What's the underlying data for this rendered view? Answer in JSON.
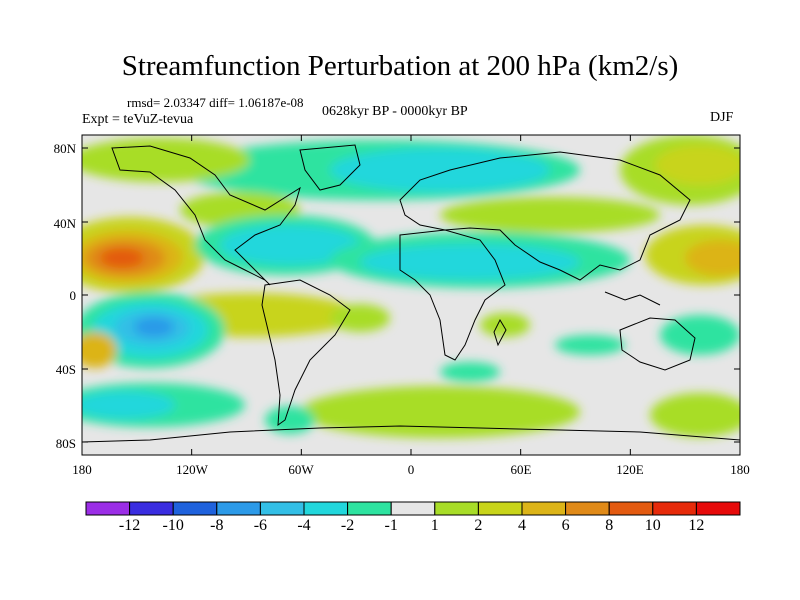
{
  "title": "Streamfunction Perturbation at 200 hPa (km2/s)",
  "stats": "rmsd= 2.03347  diff= 1.06187e-08",
  "expt": "Expt = teVuZ-tevua",
  "period": "0628kyr BP - 0000kyr BP",
  "season": "DJF",
  "lat_labels": [
    "80N",
    "40N",
    "0",
    "40S",
    "80S"
  ],
  "lon_labels": [
    "180",
    "120W",
    "60W",
    "0",
    "60E",
    "120E",
    "180"
  ],
  "colorbar": {
    "labels": [
      "-12",
      "-10",
      "-8",
      "-6",
      "-4",
      "-2",
      "-1",
      "1",
      "2",
      "4",
      "6",
      "8",
      "10",
      "12"
    ],
    "colors": [
      "#9b2ee6",
      "#3a2de0",
      "#1f62dd",
      "#2c9ae8",
      "#33bfe6",
      "#22d7dc",
      "#2ee3a0",
      "#e6e6e6",
      "#a8dd28",
      "#c8d41a",
      "#dcb418",
      "#e08a18",
      "#e35a10",
      "#e62a0a",
      "#e60a0a"
    ]
  },
  "map": {
    "land_outline_color": "#000000",
    "neutral_color": "#e6e6e6"
  }
}
